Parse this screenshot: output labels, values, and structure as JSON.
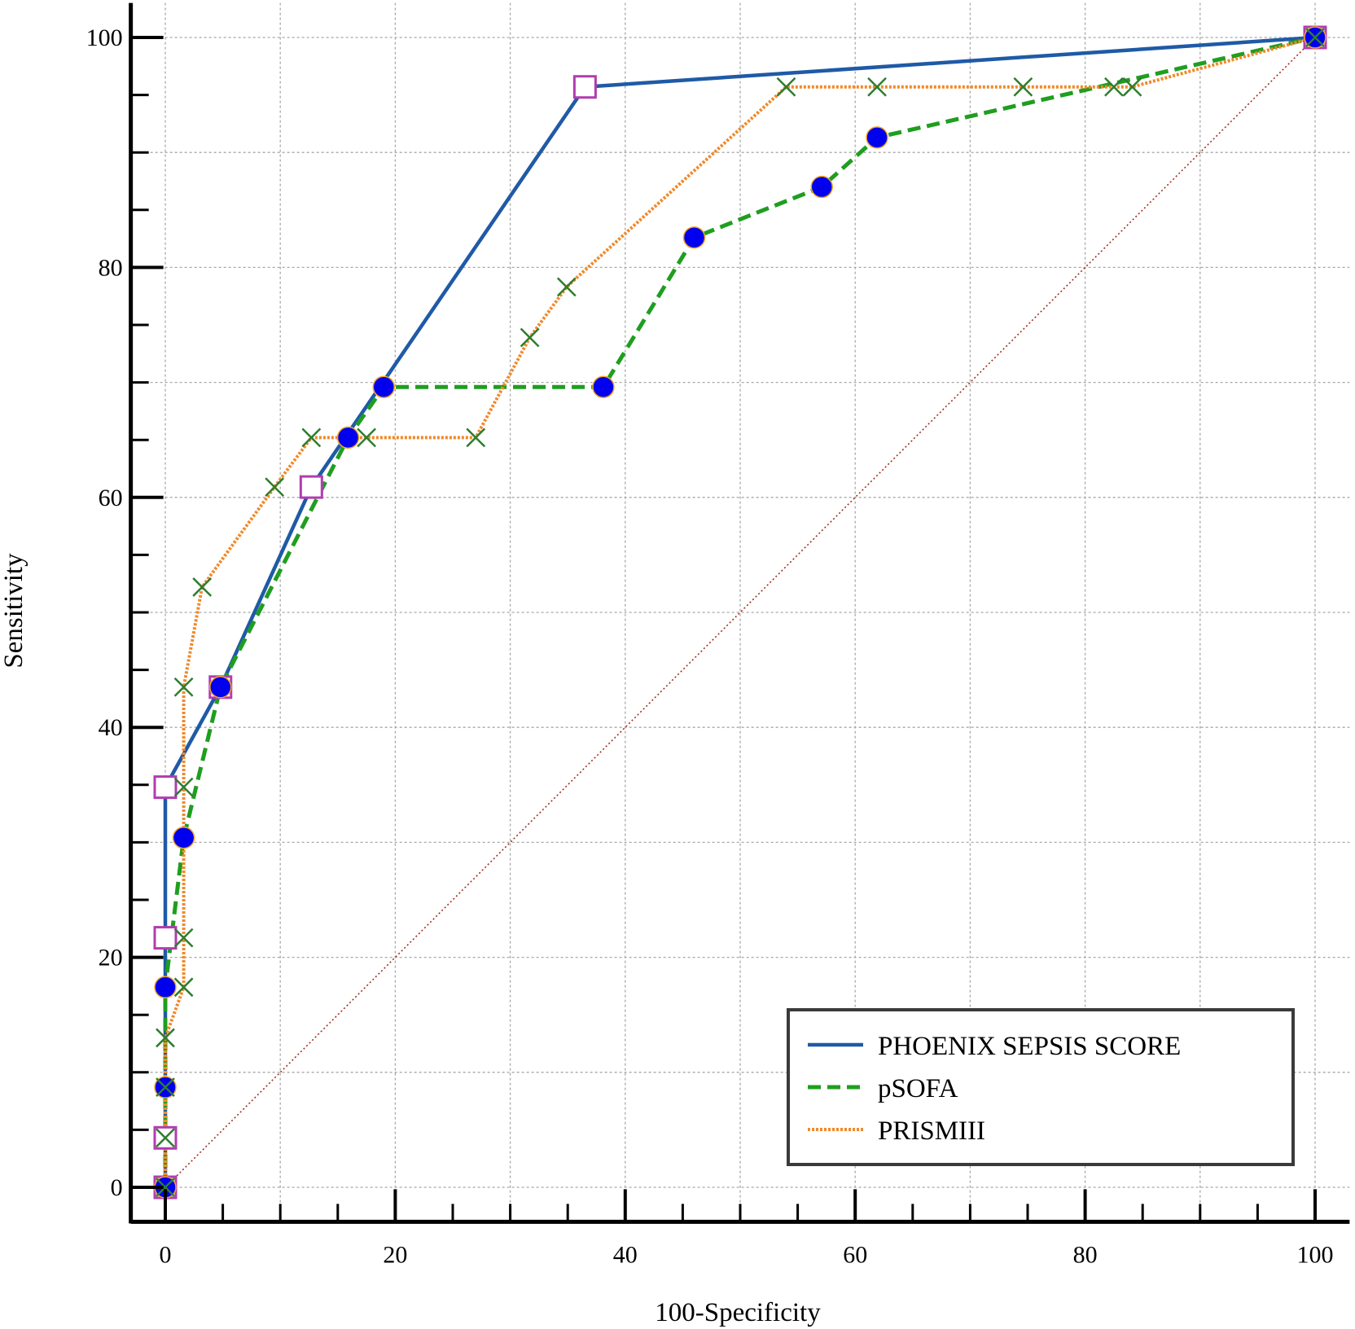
{
  "chart_data": {
    "type": "line",
    "title": "",
    "xlabel": "100-Specificity",
    "ylabel": "Sensitivity",
    "xlim": [
      -3,
      103
    ],
    "ylim": [
      -3,
      103
    ],
    "x_ticks": [
      0,
      20,
      40,
      60,
      80,
      100
    ],
    "y_ticks": [
      0,
      20,
      40,
      60,
      80,
      100
    ],
    "minor_tick_step": 5,
    "grid": true,
    "legend_position": "bottom-right",
    "reference_line": {
      "x": [
        0,
        100
      ],
      "y": [
        0,
        100
      ],
      "color": "#a0302a"
    },
    "series": [
      {
        "name": "PHOENIX SEPSIS SCORE",
        "color": "#1f5aa6",
        "style": "solid",
        "marker": "square",
        "marker_color": "#b23cb0",
        "x": [
          0,
          0,
          0,
          0,
          4.8,
          12.7,
          36.5,
          100
        ],
        "y": [
          0,
          4.3,
          21.7,
          34.8,
          43.5,
          60.9,
          95.7,
          100
        ]
      },
      {
        "name": "pSOFA",
        "color": "#1f9e1f",
        "style": "dashed",
        "marker": "circle",
        "marker_color": "#0000ee",
        "x": [
          0,
          0,
          0,
          1.6,
          4.8,
          15.9,
          19.0,
          38.1,
          46.0,
          57.1,
          61.9,
          100
        ],
        "y": [
          0,
          8.7,
          17.4,
          30.4,
          43.5,
          65.2,
          69.6,
          69.6,
          82.6,
          87.0,
          91.3,
          100
        ]
      },
      {
        "name": "PRISMIII",
        "color": "#f08a2a",
        "style": "dotted",
        "marker": "x",
        "marker_color": "#2e7d2e",
        "x": [
          0,
          0,
          0,
          0,
          1.6,
          1.6,
          1.6,
          1.6,
          3.2,
          9.5,
          12.7,
          17.5,
          27.0,
          31.7,
          34.9,
          54.0,
          61.9,
          74.6,
          82.5,
          84.1,
          100
        ],
        "y": [
          0,
          4.3,
          8.7,
          13.0,
          17.4,
          21.7,
          34.8,
          43.5,
          52.2,
          60.9,
          65.2,
          65.2,
          65.2,
          73.9,
          78.3,
          95.7,
          95.7,
          95.7,
          95.7,
          95.7,
          100
        ]
      }
    ]
  }
}
